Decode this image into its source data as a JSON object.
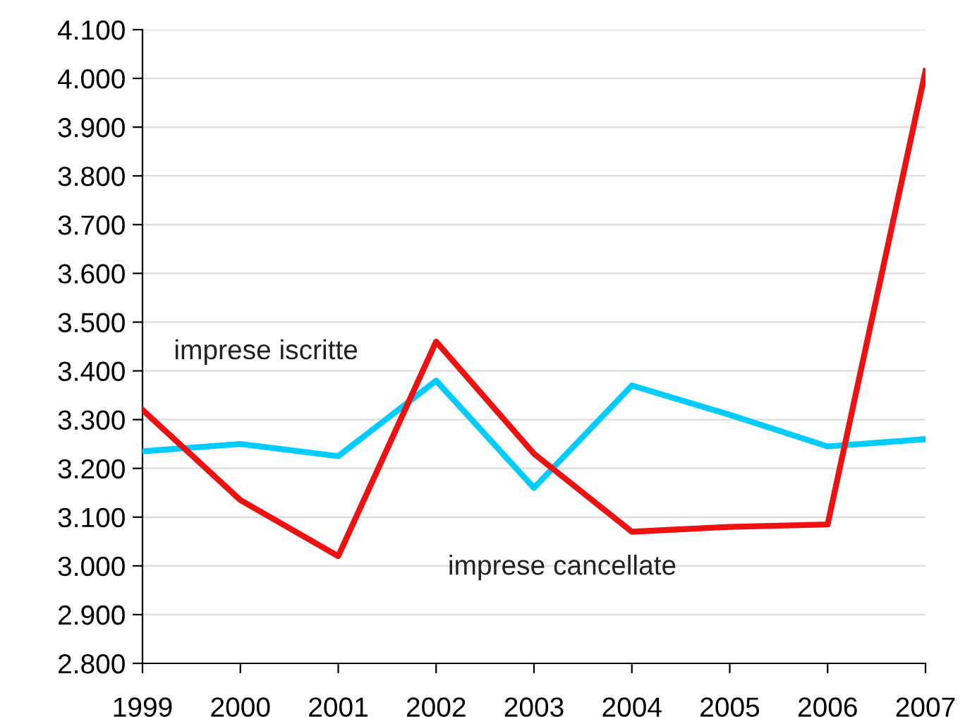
{
  "chart_data": {
    "type": "line",
    "categories": [
      "1999",
      "2000",
      "2001",
      "2002",
      "2003",
      "2004",
      "2005",
      "2006",
      "2007"
    ],
    "series": [
      {
        "name": "imprese iscritte",
        "color": "#00ccff",
        "values": [
          3235,
          3250,
          3225,
          3380,
          3160,
          3370,
          3310,
          3245,
          3260
        ]
      },
      {
        "name": "imprese cancellate",
        "color": "#ee1111",
        "values": [
          3320,
          3135,
          3020,
          3460,
          3230,
          3070,
          3080,
          3085,
          4015
        ]
      }
    ],
    "ylim": [
      2800,
      4100
    ],
    "yticks": [
      {
        "value": 2800,
        "label": "2.800"
      },
      {
        "value": 2900,
        "label": "2.900"
      },
      {
        "value": 3000,
        "label": "3.000"
      },
      {
        "value": 3100,
        "label": "3.100"
      },
      {
        "value": 3200,
        "label": "3.200"
      },
      {
        "value": 3300,
        "label": "3.300"
      },
      {
        "value": 3400,
        "label": "3.400"
      },
      {
        "value": 3500,
        "label": "3.500"
      },
      {
        "value": 3600,
        "label": "3.600"
      },
      {
        "value": 3700,
        "label": "3.700"
      },
      {
        "value": 3800,
        "label": "3.800"
      },
      {
        "value": 3900,
        "label": "3.900"
      },
      {
        "value": 4000,
        "label": "4.000"
      },
      {
        "value": 4100,
        "label": "4.100"
      }
    ],
    "grid": "y",
    "legend": false,
    "marker": "none",
    "line_style": "solid"
  }
}
